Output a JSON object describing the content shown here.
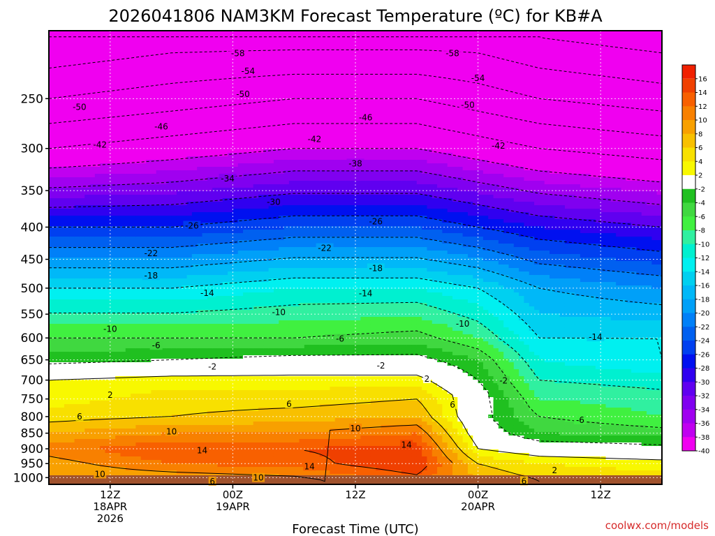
{
  "chart_data": {
    "type": "heatmap",
    "title": "2026041806 NAM3KM Forecast Temperature (ºC) for KB#A",
    "xlabel": "Forecast Time (UTC)",
    "credit": "coolwx.com/models",
    "y_axis": {
      "scale": "log-pressure",
      "inverted": true,
      "ylim": [
        1025,
        195
      ],
      "ticks": [
        250,
        300,
        350,
        400,
        450,
        500,
        550,
        600,
        650,
        700,
        750,
        800,
        850,
        900,
        950,
        1000
      ]
    },
    "x_axis": {
      "xlim_hours": [
        0,
        60
      ],
      "ticks": [
        {
          "hour": 6,
          "label": "12Z",
          "sub": "18APR",
          "sub2": "2026"
        },
        {
          "hour": 18,
          "label": "00Z",
          "sub": "19APR",
          "sub2": ""
        },
        {
          "hour": 30,
          "label": "12Z",
          "sub": "",
          "sub2": ""
        },
        {
          "hour": 42,
          "label": "00Z",
          "sub": "20APR",
          "sub2": ""
        },
        {
          "hour": 54,
          "label": "12Z",
          "sub": "",
          "sub2": ""
        }
      ]
    },
    "grid": true,
    "legend": "right colorbar",
    "colorbar": {
      "ticks": [
        16,
        14,
        12,
        10,
        8,
        6,
        4,
        2,
        -2,
        -4,
        -6,
        -8,
        -10,
        -12,
        -14,
        -16,
        -18,
        -20,
        -22,
        -24,
        -26,
        -28,
        -30,
        -32,
        -34,
        -36,
        -38,
        -40
      ],
      "colors": [
        "#f04000",
        "#f86000",
        "#f88000",
        "#f8a000",
        "#f8c000",
        "#f8e000",
        "#f8f800",
        "#ffffff",
        "#20c020",
        "#40d840",
        "#40f040",
        "#30f0a0",
        "#00f0d0",
        "#00f0f0",
        "#00d0f0",
        "#00b8f8",
        "#00a0f8",
        "#0080f8",
        "#0060f0",
        "#0040f0",
        "#0010f0",
        "#3000f0",
        "#6000f0",
        "#8000f0",
        "#a000f0",
        "#c000f0",
        "#f000f0"
      ]
    },
    "temperature_profiles": [
      {
        "hour": 0,
        "levels": [
          [
            1010,
            8
          ],
          [
            950,
            9
          ],
          [
            900,
            11
          ],
          [
            850,
            8
          ],
          [
            800,
            5
          ],
          [
            750,
            3
          ],
          [
            700,
            2
          ],
          [
            650,
            -3
          ],
          [
            600,
            -6
          ],
          [
            500,
            -14
          ],
          [
            400,
            -26
          ],
          [
            300,
            -42
          ],
          [
            250,
            -50
          ],
          [
            200,
            -58
          ]
        ]
      },
      {
        "hour": 12,
        "levels": [
          [
            1010,
            8
          ],
          [
            950,
            12
          ],
          [
            900,
            14
          ],
          [
            850,
            10
          ],
          [
            800,
            6
          ],
          [
            750,
            5
          ],
          [
            700,
            3
          ],
          [
            650,
            -2
          ],
          [
            600,
            -6
          ],
          [
            500,
            -14
          ],
          [
            400,
            -26
          ],
          [
            300,
            -40
          ],
          [
            250,
            -48
          ],
          [
            200,
            -56
          ]
        ]
      },
      {
        "hour": 24,
        "levels": [
          [
            1010,
            9
          ],
          [
            950,
            13
          ],
          [
            900,
            14
          ],
          [
            850,
            10
          ],
          [
            800,
            7
          ],
          [
            750,
            5
          ],
          [
            700,
            3
          ],
          [
            650,
            -1
          ],
          [
            600,
            -6
          ],
          [
            500,
            -12
          ],
          [
            400,
            -24
          ],
          [
            300,
            -38
          ],
          [
            250,
            -46
          ],
          [
            200,
            -56
          ]
        ]
      },
      {
        "hour": 36,
        "levels": [
          [
            1010,
            13
          ],
          [
            950,
            16
          ],
          [
            900,
            15
          ],
          [
            850,
            12
          ],
          [
            800,
            8
          ],
          [
            750,
            6
          ],
          [
            700,
            3
          ],
          [
            650,
            -1
          ],
          [
            600,
            -5
          ],
          [
            500,
            -12
          ],
          [
            400,
            -24
          ],
          [
            300,
            -38
          ],
          [
            250,
            -46
          ],
          [
            200,
            -56
          ]
        ]
      },
      {
        "hour": 42,
        "levels": [
          [
            1010,
            8
          ],
          [
            950,
            6
          ],
          [
            900,
            2
          ],
          [
            850,
            0
          ],
          [
            800,
            -1
          ],
          [
            750,
            0
          ],
          [
            700,
            -2
          ],
          [
            650,
            -4
          ],
          [
            600,
            -8
          ],
          [
            500,
            -14
          ],
          [
            400,
            -26
          ],
          [
            300,
            -40
          ],
          [
            250,
            -48
          ],
          [
            200,
            -56
          ]
        ]
      },
      {
        "hour": 48,
        "levels": [
          [
            1010,
            6
          ],
          [
            950,
            4
          ],
          [
            900,
            0
          ],
          [
            850,
            -4
          ],
          [
            800,
            -6
          ],
          [
            750,
            -8
          ],
          [
            700,
            -10
          ],
          [
            650,
            -12
          ],
          [
            600,
            -14
          ],
          [
            500,
            -18
          ],
          [
            400,
            -28
          ],
          [
            300,
            -42
          ],
          [
            250,
            -50
          ],
          [
            200,
            -58
          ]
        ]
      },
      {
        "hour": 60,
        "levels": [
          [
            1010,
            5
          ],
          [
            950,
            3
          ],
          [
            900,
            -1
          ],
          [
            850,
            -5
          ],
          [
            800,
            -8
          ],
          [
            750,
            -9
          ],
          [
            700,
            -11
          ],
          [
            650,
            -14
          ],
          [
            600,
            -14
          ],
          [
            500,
            -20
          ],
          [
            400,
            -30
          ],
          [
            300,
            -44
          ],
          [
            250,
            -52
          ],
          [
            200,
            -60
          ]
        ]
      }
    ],
    "contour_labels": [
      {
        "text": "-58",
        "hour": 18.5,
        "p": 212
      },
      {
        "text": "-58",
        "hour": 39.5,
        "p": 212
      },
      {
        "text": "-54",
        "hour": 19.5,
        "p": 226
      },
      {
        "text": "-54",
        "hour": 42,
        "p": 232
      },
      {
        "text": "-50",
        "hour": 3,
        "p": 258
      },
      {
        "text": "-50",
        "hour": 19,
        "p": 246
      },
      {
        "text": "-50",
        "hour": 41,
        "p": 256
      },
      {
        "text": "-46",
        "hour": 11,
        "p": 277
      },
      {
        "text": "-46",
        "hour": 31,
        "p": 268
      },
      {
        "text": "-42",
        "hour": 5,
        "p": 296
      },
      {
        "text": "-42",
        "hour": 26,
        "p": 290
      },
      {
        "text": "-42",
        "hour": 44,
        "p": 297
      },
      {
        "text": "-38",
        "hour": 30,
        "p": 317
      },
      {
        "text": "-34",
        "hour": 17.5,
        "p": 335
      },
      {
        "text": "-30",
        "hour": 22,
        "p": 365
      },
      {
        "text": "-26",
        "hour": 14,
        "p": 398
      },
      {
        "text": "-26",
        "hour": 32,
        "p": 392
      },
      {
        "text": "-22",
        "hour": 10,
        "p": 440
      },
      {
        "text": "-22",
        "hour": 27,
        "p": 432
      },
      {
        "text": "-18",
        "hour": 10,
        "p": 478
      },
      {
        "text": "-18",
        "hour": 32,
        "p": 465
      },
      {
        "text": "-14",
        "hour": 15.5,
        "p": 509
      },
      {
        "text": "-14",
        "hour": 31,
        "p": 510
      },
      {
        "text": "-14",
        "hour": 53.5,
        "p": 598
      },
      {
        "text": "-10",
        "hour": 6,
        "p": 581
      },
      {
        "text": "-10",
        "hour": 22.5,
        "p": 546
      },
      {
        "text": "-10",
        "hour": 40.5,
        "p": 570
      },
      {
        "text": "-6",
        "hour": 10.5,
        "p": 617
      },
      {
        "text": "-6",
        "hour": 28.5,
        "p": 602
      },
      {
        "text": "-6",
        "hour": 52,
        "p": 810
      },
      {
        "text": "-2",
        "hour": 16,
        "p": 667
      },
      {
        "text": "-2",
        "hour": 32.5,
        "p": 664
      },
      {
        "text": "-2",
        "hour": 44.5,
        "p": 702
      },
      {
        "text": "2",
        "hour": 6,
        "p": 739
      },
      {
        "text": "2",
        "hour": 37,
        "p": 697
      },
      {
        "text": "2",
        "hour": 49.5,
        "p": 974
      },
      {
        "text": "6",
        "hour": 3,
        "p": 800
      },
      {
        "text": "6",
        "hour": 23.5,
        "p": 764
      },
      {
        "text": "6",
        "hour": 39.5,
        "p": 766
      },
      {
        "text": "6",
        "hour": 16,
        "p": 1014
      },
      {
        "text": "6",
        "hour": 46.5,
        "p": 1013
      },
      {
        "text": "10",
        "hour": 12,
        "p": 845
      },
      {
        "text": "10",
        "hour": 30,
        "p": 836
      },
      {
        "text": "10",
        "hour": 5,
        "p": 988
      },
      {
        "text": "10",
        "hour": 20.5,
        "p": 1001
      },
      {
        "text": "14",
        "hour": 15,
        "p": 906
      },
      {
        "text": "14",
        "hour": 35,
        "p": 887
      },
      {
        "text": "14",
        "hour": 25.5,
        "p": 960
      }
    ]
  }
}
